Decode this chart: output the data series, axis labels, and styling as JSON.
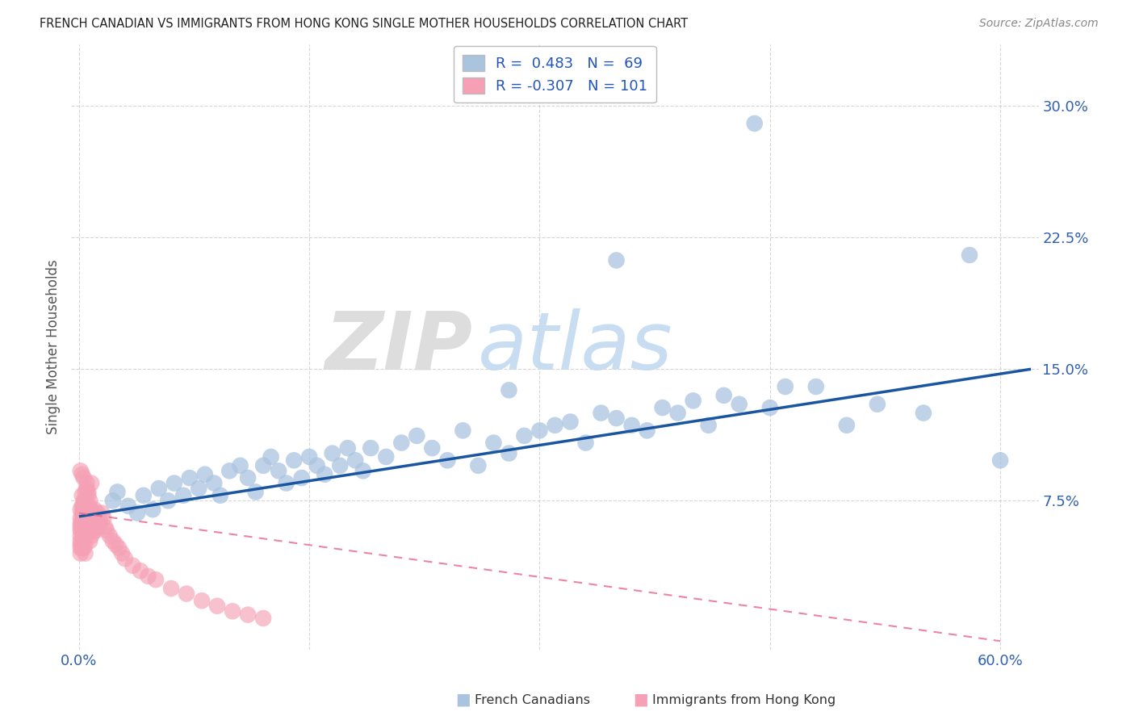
{
  "title": "FRENCH CANADIAN VS IMMIGRANTS FROM HONG KONG SINGLE MOTHER HOUSEHOLDS CORRELATION CHART",
  "source": "Source: ZipAtlas.com",
  "ylabel": "Single Mother Households",
  "xlim": [
    -0.005,
    0.625
  ],
  "ylim": [
    -0.01,
    0.335
  ],
  "blue_R": 0.483,
  "blue_N": 69,
  "pink_R": -0.307,
  "pink_N": 101,
  "blue_color": "#aac4e0",
  "pink_color": "#f5a0b5",
  "blue_line_color": "#1a56a0",
  "pink_line_color": "#e87090",
  "watermark_zip": "ZIP",
  "watermark_atlas": "atlas",
  "legend_label_blue": "French Canadians",
  "legend_label_pink": "Immigrants from Hong Kong",
  "ytick_labels": [
    "7.5%",
    "15.0%",
    "22.5%",
    "30.0%"
  ],
  "ytick_values": [
    0.075,
    0.15,
    0.225,
    0.3
  ],
  "xtick_labels": [
    "0.0%",
    "",
    "",
    "",
    "60.0%"
  ],
  "xtick_values": [
    0.0,
    0.15,
    0.3,
    0.45,
    0.6
  ],
  "blue_line_x": [
    0.0,
    0.62
  ],
  "blue_line_y": [
    0.066,
    0.15
  ],
  "pink_line_x": [
    0.0,
    0.6
  ],
  "pink_line_y": [
    0.068,
    -0.005
  ],
  "blue_x": [
    0.022,
    0.025,
    0.032,
    0.038,
    0.042,
    0.048,
    0.052,
    0.058,
    0.062,
    0.068,
    0.072,
    0.078,
    0.082,
    0.088,
    0.092,
    0.098,
    0.105,
    0.11,
    0.115,
    0.12,
    0.125,
    0.13,
    0.135,
    0.14,
    0.145,
    0.15,
    0.155,
    0.16,
    0.165,
    0.17,
    0.175,
    0.18,
    0.185,
    0.19,
    0.2,
    0.21,
    0.22,
    0.23,
    0.24,
    0.25,
    0.27,
    0.28,
    0.29,
    0.31,
    0.33,
    0.35,
    0.37,
    0.39,
    0.41,
    0.43,
    0.26,
    0.3,
    0.32,
    0.34,
    0.36,
    0.38,
    0.4,
    0.45,
    0.5,
    0.52,
    0.28,
    0.42,
    0.48,
    0.55,
    0.58,
    0.6,
    0.46,
    0.35,
    0.44
  ],
  "blue_y": [
    0.075,
    0.08,
    0.072,
    0.068,
    0.078,
    0.07,
    0.082,
    0.075,
    0.085,
    0.078,
    0.088,
    0.082,
    0.09,
    0.085,
    0.078,
    0.092,
    0.095,
    0.088,
    0.08,
    0.095,
    0.1,
    0.092,
    0.085,
    0.098,
    0.088,
    0.1,
    0.095,
    0.09,
    0.102,
    0.095,
    0.105,
    0.098,
    0.092,
    0.105,
    0.1,
    0.108,
    0.112,
    0.105,
    0.098,
    0.115,
    0.108,
    0.102,
    0.112,
    0.118,
    0.108,
    0.122,
    0.115,
    0.125,
    0.118,
    0.13,
    0.095,
    0.115,
    0.12,
    0.125,
    0.118,
    0.128,
    0.132,
    0.128,
    0.118,
    0.13,
    0.138,
    0.135,
    0.14,
    0.125,
    0.215,
    0.098,
    0.14,
    0.212,
    0.29
  ],
  "pink_x": [
    0.001,
    0.001,
    0.001,
    0.001,
    0.001,
    0.001,
    0.001,
    0.001,
    0.001,
    0.001,
    0.002,
    0.002,
    0.002,
    0.002,
    0.002,
    0.002,
    0.002,
    0.002,
    0.002,
    0.002,
    0.003,
    0.003,
    0.003,
    0.003,
    0.003,
    0.003,
    0.003,
    0.003,
    0.003,
    0.003,
    0.004,
    0.004,
    0.004,
    0.004,
    0.004,
    0.004,
    0.004,
    0.004,
    0.005,
    0.005,
    0.005,
    0.005,
    0.005,
    0.005,
    0.006,
    0.006,
    0.006,
    0.006,
    0.006,
    0.007,
    0.007,
    0.007,
    0.007,
    0.008,
    0.008,
    0.008,
    0.009,
    0.009,
    0.01,
    0.01,
    0.01,
    0.011,
    0.011,
    0.012,
    0.012,
    0.013,
    0.014,
    0.015,
    0.016,
    0.017,
    0.018,
    0.02,
    0.022,
    0.024,
    0.026,
    0.028,
    0.03,
    0.035,
    0.04,
    0.045,
    0.05,
    0.06,
    0.07,
    0.08,
    0.09,
    0.1,
    0.11,
    0.12,
    0.005,
    0.003,
    0.002,
    0.004,
    0.006,
    0.008,
    0.001,
    0.002,
    0.003,
    0.004,
    0.005,
    0.006,
    0.007
  ],
  "pink_y": [
    0.06,
    0.055,
    0.05,
    0.045,
    0.065,
    0.07,
    0.058,
    0.048,
    0.052,
    0.062,
    0.063,
    0.058,
    0.053,
    0.068,
    0.072,
    0.062,
    0.057,
    0.048,
    0.065,
    0.06,
    0.062,
    0.057,
    0.052,
    0.068,
    0.073,
    0.065,
    0.058,
    0.048,
    0.055,
    0.07,
    0.065,
    0.06,
    0.055,
    0.072,
    0.068,
    0.058,
    0.05,
    0.045,
    0.068,
    0.062,
    0.058,
    0.072,
    0.065,
    0.055,
    0.068,
    0.062,
    0.058,
    0.072,
    0.065,
    0.07,
    0.065,
    0.058,
    0.052,
    0.07,
    0.063,
    0.055,
    0.068,
    0.06,
    0.07,
    0.062,
    0.058,
    0.065,
    0.058,
    0.068,
    0.06,
    0.065,
    0.062,
    0.068,
    0.065,
    0.06,
    0.058,
    0.055,
    0.052,
    0.05,
    0.048,
    0.045,
    0.042,
    0.038,
    0.035,
    0.032,
    0.03,
    0.025,
    0.022,
    0.018,
    0.015,
    0.012,
    0.01,
    0.008,
    0.082,
    0.088,
    0.09,
    0.075,
    0.08,
    0.085,
    0.092,
    0.078,
    0.075,
    0.08,
    0.085,
    0.078,
    0.075
  ]
}
